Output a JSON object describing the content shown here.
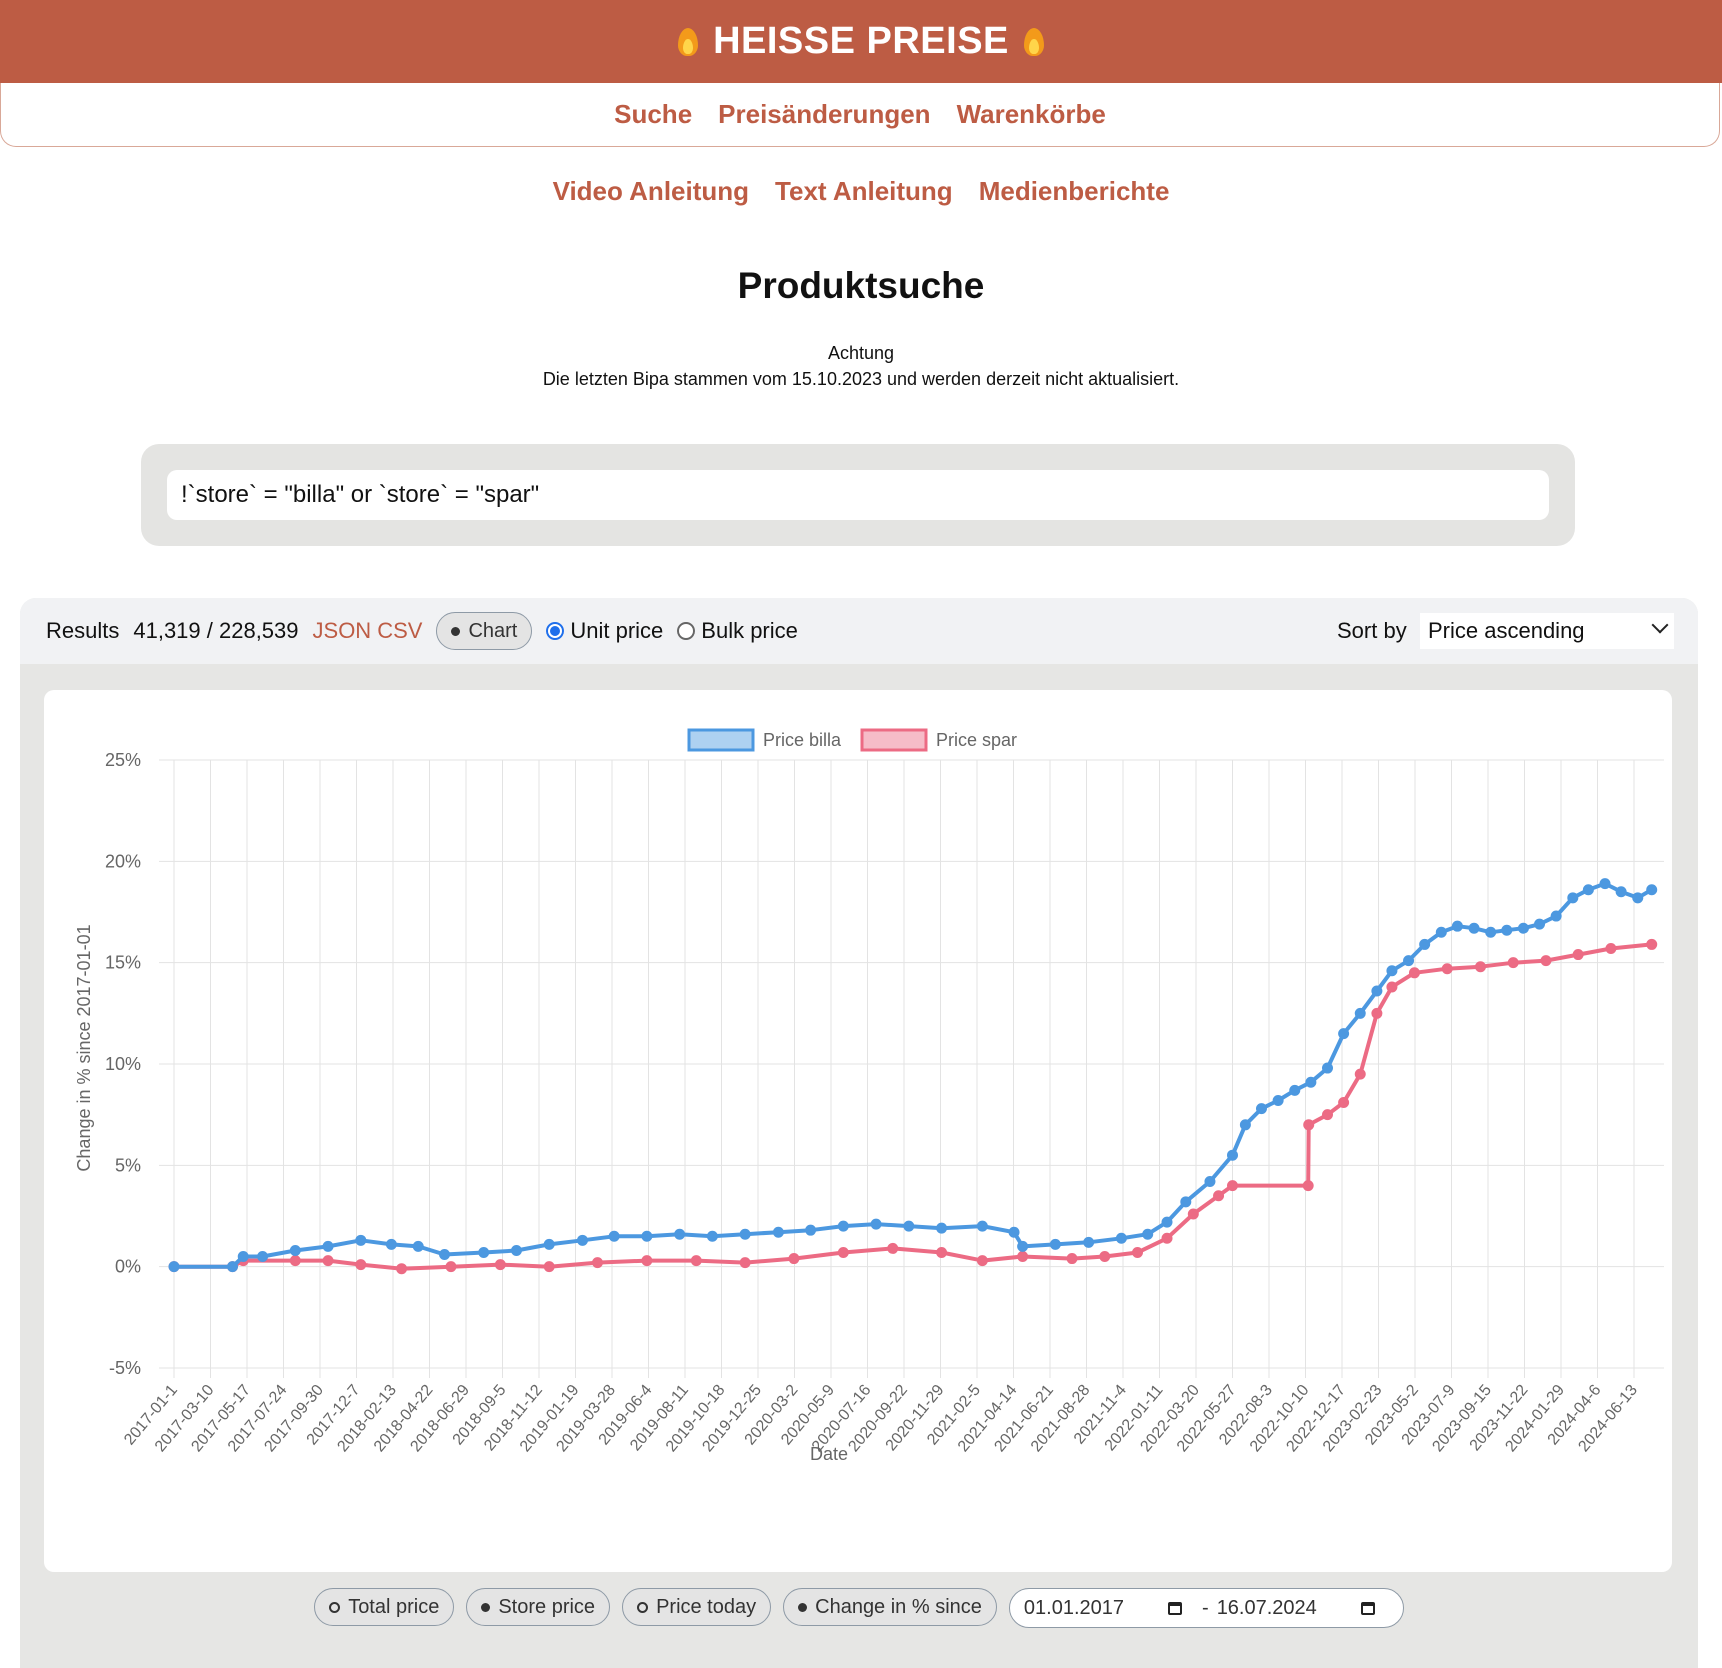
{
  "header": {
    "title": "HEISSE PREISE"
  },
  "nav": {
    "items": [
      "Suche",
      "Preisänderungen",
      "Warenkörbe"
    ]
  },
  "subnav": {
    "items": [
      "Video Anleitung",
      "Text Anleitung",
      "Medienberichte"
    ]
  },
  "page": {
    "title": "Produktsuche",
    "notice_title": "Achtung",
    "notice_text": "Die letzten Bipa stammen vom 15.10.2023 und werden derzeit nicht aktualisiert."
  },
  "search": {
    "query": "!`store` = \"billa\" or `store` = \"spar\""
  },
  "results": {
    "label": "Results",
    "count": "41,319 / 228,539",
    "json_label": "JSON",
    "csv_label": "CSV",
    "chart_label": "Chart",
    "unit_price_label": "Unit price",
    "bulk_price_label": "Bulk price",
    "price_mode": "Unit price",
    "sort_label": "Sort by",
    "sort_value": "Price ascending"
  },
  "controls": {
    "total_price": "Total price",
    "store_price": "Store price",
    "price_today": "Price today",
    "change_since": "Change in % since",
    "date_from": "01.01.2017",
    "date_sep": "-",
    "date_to": "16.07.2024"
  },
  "colors": {
    "brand": "#bd5c44",
    "billa": "#4c98e0",
    "spar": "#ec6b84"
  },
  "chart_data": {
    "type": "line",
    "xlabel": "Date",
    "ylabel": "Change in % since 2017-01-01",
    "ylim": [
      -5,
      25
    ],
    "yticks": [
      "25%",
      "20%",
      "15%",
      "10%",
      "5%",
      "0%",
      "-5%"
    ],
    "xrange": [
      "2017-01-01",
      "2024-07-16"
    ],
    "xticks": [
      "2017-01-1",
      "2017-03-10",
      "2017-05-17",
      "2017-07-24",
      "2017-09-30",
      "2017-12-7",
      "2018-02-13",
      "2018-04-22",
      "2018-06-29",
      "2018-09-5",
      "2018-11-12",
      "2019-01-19",
      "2019-03-28",
      "2019-06-4",
      "2019-08-11",
      "2019-10-18",
      "2019-12-25",
      "2020-03-2",
      "2020-05-9",
      "2020-07-16",
      "2020-09-22",
      "2020-11-29",
      "2021-02-5",
      "2021-04-14",
      "2021-06-21",
      "2021-08-28",
      "2021-11-4",
      "2022-01-11",
      "2022-03-20",
      "2022-05-27",
      "2022-08-3",
      "2022-10-10",
      "2022-12-17",
      "2023-02-23",
      "2023-05-2",
      "2023-07-9",
      "2023-09-15",
      "2023-11-22",
      "2024-01-29",
      "2024-04-6",
      "2024-06-13"
    ],
    "legend_position": "top",
    "grid": true,
    "series": [
      {
        "name": "Price billa",
        "x": [
          "2017-01-01",
          "2017-04-20",
          "2017-05-10",
          "2017-06-15",
          "2017-08-15",
          "2017-10-15",
          "2017-12-15",
          "2018-02-10",
          "2018-04-01",
          "2018-05-20",
          "2018-08-01",
          "2018-10-01",
          "2018-12-01",
          "2019-02-01",
          "2019-04-01",
          "2019-06-01",
          "2019-08-01",
          "2019-10-01",
          "2019-12-01",
          "2020-02-01",
          "2020-04-01",
          "2020-06-01",
          "2020-08-01",
          "2020-10-01",
          "2020-12-01",
          "2021-02-15",
          "2021-04-15",
          "2021-05-01",
          "2021-07-01",
          "2021-09-01",
          "2021-11-01",
          "2021-12-20",
          "2022-01-25",
          "2022-03-01",
          "2022-04-15",
          "2022-05-27",
          "2022-06-20",
          "2022-07-20",
          "2022-08-20",
          "2022-09-20",
          "2022-10-20",
          "2022-11-20",
          "2022-12-20",
          "2023-01-20",
          "2023-02-20",
          "2023-03-20",
          "2023-04-20",
          "2023-05-20",
          "2023-06-20",
          "2023-07-20",
          "2023-08-20",
          "2023-09-20",
          "2023-10-20",
          "2023-11-20",
          "2023-12-20",
          "2024-01-20",
          "2024-02-20",
          "2024-03-20",
          "2024-04-20",
          "2024-05-20",
          "2024-06-20",
          "2024-07-16"
        ],
        "y": [
          0,
          0,
          0.5,
          0.5,
          0.8,
          1,
          1.3,
          1.1,
          1,
          0.6,
          0.7,
          0.8,
          1.1,
          1.3,
          1.5,
          1.5,
          1.6,
          1.5,
          1.6,
          1.7,
          1.8,
          2,
          2.1,
          2,
          1.9,
          2,
          1.7,
          1,
          1.1,
          1.2,
          1.4,
          1.6,
          2.2,
          3.2,
          4.2,
          5.5,
          7,
          7.8,
          8.2,
          8.7,
          9.1,
          9.8,
          11.5,
          12.5,
          13.6,
          14.6,
          15.1,
          15.9,
          16.5,
          16.8,
          16.7,
          16.5,
          16.6,
          16.7,
          16.9,
          17.3,
          18.2,
          18.6,
          18.9,
          18.5,
          18.2,
          18.6
        ]
      },
      {
        "name": "Price spar",
        "x": [
          "2017-01-01",
          "2017-04-20",
          "2017-05-10",
          "2017-08-15",
          "2017-10-15",
          "2017-12-15",
          "2018-03-01",
          "2018-06-01",
          "2018-09-01",
          "2018-12-01",
          "2019-03-01",
          "2019-06-01",
          "2019-09-01",
          "2019-12-01",
          "2020-03-01",
          "2020-06-01",
          "2020-09-01",
          "2020-12-01",
          "2021-02-15",
          "2021-05-01",
          "2021-08-01",
          "2021-10-01",
          "2021-12-01",
          "2022-01-25",
          "2022-03-15",
          "2022-05-01",
          "2022-05-27",
          "2022-10-15",
          "2022-10-16",
          "2022-11-20",
          "2022-12-20",
          "2023-01-20",
          "2023-02-20",
          "2023-03-20",
          "2023-05-01",
          "2023-07-01",
          "2023-09-01",
          "2023-11-01",
          "2024-01-01",
          "2024-03-01",
          "2024-05-01",
          "2024-07-16"
        ],
        "y": [
          0,
          0,
          0.3,
          0.3,
          0.3,
          0.1,
          -0.1,
          0,
          0.1,
          0,
          0.2,
          0.3,
          0.3,
          0.2,
          0.4,
          0.7,
          0.9,
          0.7,
          0.3,
          0.5,
          0.4,
          0.5,
          0.7,
          1.4,
          2.6,
          3.5,
          4,
          4,
          7,
          7.5,
          8.1,
          9.5,
          12.5,
          13.8,
          14.5,
          14.7,
          14.8,
          15,
          15.1,
          15.4,
          15.7,
          15.9
        ]
      }
    ]
  }
}
